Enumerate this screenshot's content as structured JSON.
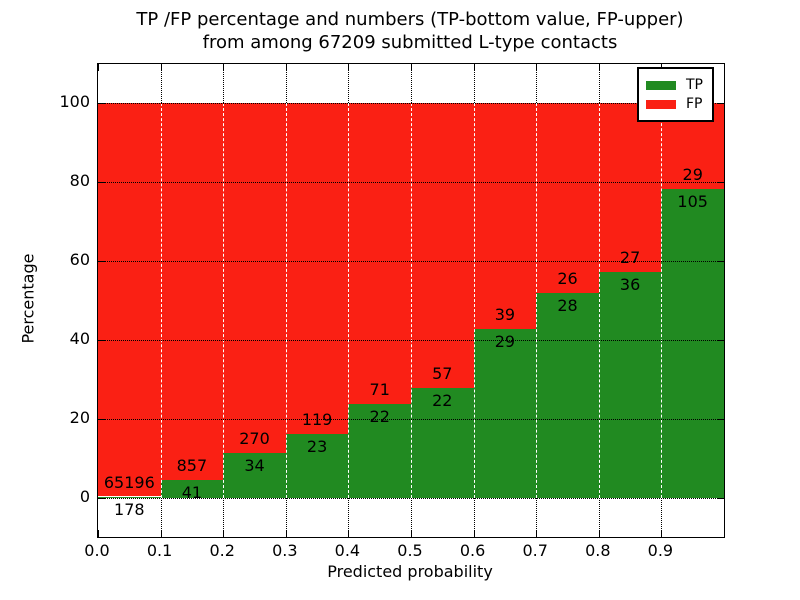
{
  "figure": {
    "title_line1": "TP /FP percentage and numbers (TP-bottom value, FP-upper)",
    "title_line2": "from among 67209 submitted L-type contacts",
    "xlabel": "Predicted probability",
    "ylabel": "Percentage"
  },
  "colors": {
    "tp_green": "#218a21",
    "fp_red": "#fa2014",
    "axis": "#000000",
    "grid_dark": "#000000",
    "grid_light": "#ffffff",
    "background": "#ffffff"
  },
  "legend": {
    "items": [
      {
        "label": "TP",
        "color": "#218a21"
      },
      {
        "label": "FP",
        "color": "#fa2014"
      }
    ]
  },
  "chart_data": {
    "type": "bar",
    "variant": "stacked-percentage",
    "title": "TP /FP percentage and numbers (TP-bottom value, FP-upper) from among 67209 submitted L-type contacts",
    "xlabel": "Predicted probability",
    "ylabel": "Percentage",
    "total_contacts": 67209,
    "xlim": [
      0.0,
      1.0
    ],
    "ylim": [
      -10,
      110
    ],
    "bin_width": 0.1,
    "x_tick_labels": [
      "0.0",
      "0.1",
      "0.2",
      "0.3",
      "0.4",
      "0.5",
      "0.6",
      "0.7",
      "0.8",
      "0.9"
    ],
    "y_tick_values": [
      0,
      20,
      40,
      60,
      80,
      100
    ],
    "grid": true,
    "legend_position": "upper right",
    "bins": [
      {
        "range": [
          0.0,
          0.1
        ],
        "tp": 178,
        "fp": 65196
      },
      {
        "range": [
          0.1,
          0.2
        ],
        "tp": 41,
        "fp": 857
      },
      {
        "range": [
          0.2,
          0.3
        ],
        "tp": 34,
        "fp": 270
      },
      {
        "range": [
          0.3,
          0.4
        ],
        "tp": 23,
        "fp": 119
      },
      {
        "range": [
          0.4,
          0.5
        ],
        "tp": 22,
        "fp": 71
      },
      {
        "range": [
          0.5,
          0.6
        ],
        "tp": 22,
        "fp": 57
      },
      {
        "range": [
          0.6,
          0.7
        ],
        "tp": 29,
        "fp": 39
      },
      {
        "range": [
          0.7,
          0.8
        ],
        "tp": 28,
        "fp": 26
      },
      {
        "range": [
          0.8,
          0.9
        ],
        "tp": 36,
        "fp": 27
      },
      {
        "range": [
          0.9,
          1.0
        ],
        "tp": 105,
        "fp": 29
      }
    ],
    "series": [
      {
        "name": "TP",
        "color": "#218a21",
        "values": [
          178,
          41,
          34,
          23,
          22,
          22,
          29,
          28,
          36,
          105
        ]
      },
      {
        "name": "FP",
        "color": "#fa2014",
        "values": [
          65196,
          857,
          270,
          119,
          71,
          57,
          39,
          26,
          27,
          29
        ]
      }
    ]
  }
}
